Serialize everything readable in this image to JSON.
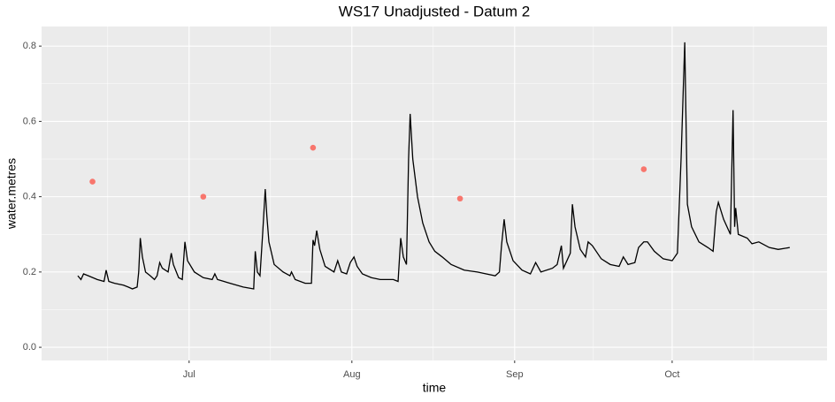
{
  "chart_data": {
    "type": "line",
    "title": "WS17 Unadjusted - Datum 2",
    "x_label": "time",
    "y_label": "water.metres",
    "xlim": [
      153.9,
      303.5
    ],
    "ylim": [
      -0.035,
      0.852
    ],
    "xticks": [
      {
        "value": 182,
        "label": "Jul"
      },
      {
        "value": 213,
        "label": "Aug"
      },
      {
        "value": 244,
        "label": "Sep"
      },
      {
        "value": 274,
        "label": "Oct"
      }
    ],
    "yticks": [
      {
        "value": 0,
        "label": "0.0"
      },
      0.2,
      0.4,
      0.6,
      0.8
    ],
    "grid": true,
    "series": [
      {
        "type": "line",
        "color": "#000000",
        "x": [
          160.8,
          161.4,
          161.9,
          162.8,
          164.5,
          165.8,
          166.2,
          166.7,
          167.8,
          169.5,
          170.4,
          171.2,
          172.1,
          172.4,
          172.7,
          173.1,
          173.7,
          174.6,
          175.4,
          175.9,
          176.4,
          176.9,
          178.0,
          178.6,
          179.0,
          180.0,
          180.7,
          181.2,
          181.7,
          183.0,
          184.7,
          186.4,
          186.9,
          187.4,
          189.8,
          192.3,
          194.3,
          194.6,
          195.0,
          195.5,
          196.0,
          196.5,
          196.8,
          197.2,
          198.2,
          199.9,
          201.2,
          201.5,
          202.2,
          204.1,
          205.3,
          205.6,
          205.9,
          206.3,
          206.9,
          207.9,
          209.6,
          210.3,
          211.0,
          212.0,
          212.7,
          213.4,
          214.0,
          215.0,
          216.7,
          218.4,
          220.9,
          221.8,
          222.3,
          222.8,
          223.4,
          223.8,
          224.1,
          224.6,
          225.5,
          226.5,
          227.7,
          228.8,
          230.2,
          231.9,
          234.4,
          236.9,
          240.3,
          241.1,
          241.5,
          242.0,
          242.5,
          243.7,
          245.4,
          247.0,
          248.0,
          249.0,
          251.2,
          252.1,
          252.9,
          253.3,
          254.6,
          255.0,
          255.5,
          256.5,
          257.5,
          258.0,
          258.8,
          260.5,
          262.2,
          263.9,
          264.7,
          265.6,
          266.9,
          267.6,
          268.6,
          269.3,
          270.6,
          272.3,
          274.0,
          275.0,
          275.7,
          276.4,
          276.9,
          277.7,
          279.1,
          280.8,
          281.8,
          282.4,
          282.8,
          283.8,
          285.1,
          285.6,
          285.9,
          286.1,
          286.6,
          288.3,
          289.2,
          290.5,
          292.5,
          294.2,
          296.4
        ],
        "values": [
          0.19,
          0.18,
          0.195,
          0.19,
          0.18,
          0.175,
          0.205,
          0.175,
          0.17,
          0.165,
          0.16,
          0.155,
          0.16,
          0.2,
          0.29,
          0.24,
          0.2,
          0.19,
          0.18,
          0.19,
          0.225,
          0.21,
          0.2,
          0.25,
          0.22,
          0.185,
          0.18,
          0.28,
          0.23,
          0.2,
          0.185,
          0.18,
          0.195,
          0.18,
          0.17,
          0.16,
          0.155,
          0.255,
          0.2,
          0.19,
          0.3,
          0.42,
          0.35,
          0.28,
          0.22,
          0.2,
          0.19,
          0.2,
          0.18,
          0.17,
          0.17,
          0.285,
          0.27,
          0.31,
          0.26,
          0.215,
          0.2,
          0.23,
          0.2,
          0.195,
          0.225,
          0.24,
          0.215,
          0.195,
          0.185,
          0.18,
          0.18,
          0.175,
          0.29,
          0.24,
          0.22,
          0.5,
          0.62,
          0.5,
          0.4,
          0.33,
          0.28,
          0.255,
          0.24,
          0.22,
          0.205,
          0.2,
          0.19,
          0.2,
          0.27,
          0.34,
          0.28,
          0.23,
          0.205,
          0.195,
          0.225,
          0.2,
          0.21,
          0.22,
          0.27,
          0.21,
          0.25,
          0.38,
          0.32,
          0.26,
          0.24,
          0.28,
          0.27,
          0.235,
          0.22,
          0.215,
          0.24,
          0.22,
          0.225,
          0.265,
          0.28,
          0.28,
          0.255,
          0.235,
          0.23,
          0.25,
          0.5,
          0.81,
          0.38,
          0.32,
          0.28,
          0.265,
          0.255,
          0.36,
          0.385,
          0.34,
          0.3,
          0.63,
          0.32,
          0.37,
          0.3,
          0.29,
          0.275,
          0.28,
          0.265,
          0.26,
          0.265
        ]
      },
      {
        "type": "point",
        "color": "#f8766d",
        "x": [
          163.6,
          184.7,
          205.6,
          233.6,
          268.6
        ],
        "values": [
          0.44,
          0.4,
          0.53,
          0.395,
          0.473
        ]
      }
    ]
  }
}
